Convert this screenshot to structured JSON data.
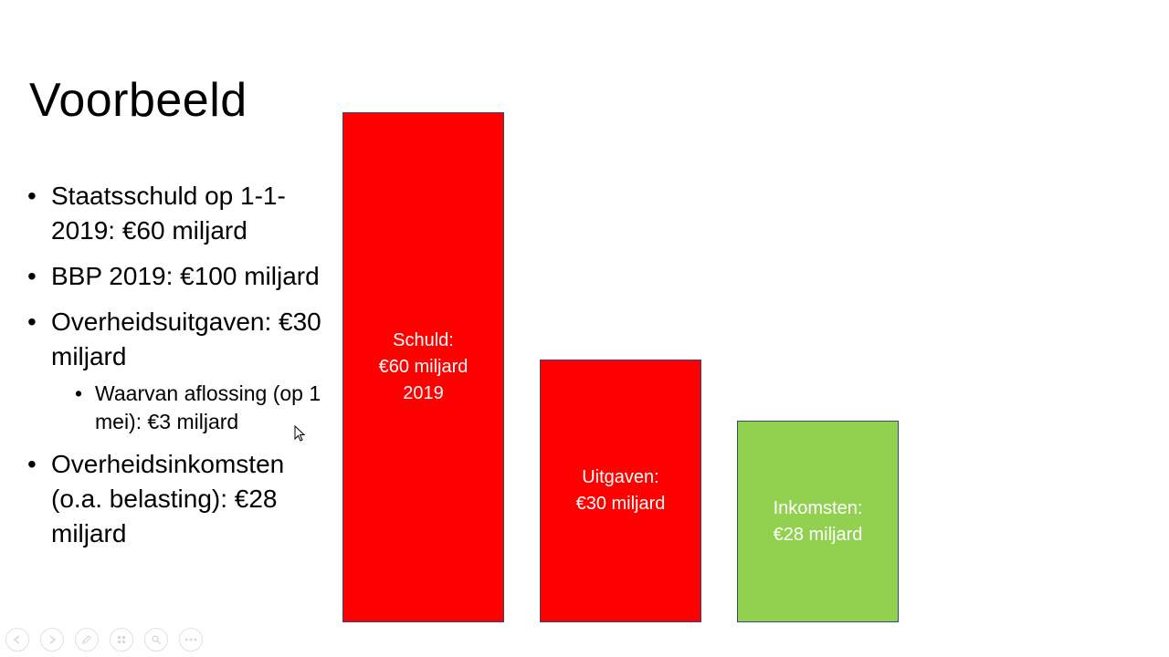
{
  "slide": {
    "title": "Voorbeeld",
    "bullets": [
      {
        "text": "Staatsschuld op 1-1-2019: €60 miljard"
      },
      {
        "text": "BBP 2019: €100 miljard"
      },
      {
        "text": "Overheidsuitgaven: €30 miljard",
        "sub": [
          {
            "text": "Waarvan aflossing (op 1 mei): €3 miljard"
          }
        ]
      },
      {
        "text": "Overheidsinkomsten (o.a. belasting): €28 miljard"
      }
    ]
  },
  "blocks": [
    {
      "label": "Schuld:\n€60 miljard\n2019",
      "value": 60,
      "color": "#ff0000"
    },
    {
      "label": "Uitgaven:\n€30 miljard",
      "value": 30,
      "color": "#ff0000"
    },
    {
      "label": "Inkomsten:\n€28 miljard",
      "value": 28,
      "color": "#92d050"
    }
  ],
  "toolbar": {
    "icons": [
      "prev-icon",
      "next-icon",
      "pen-icon",
      "slides-icon",
      "zoom-icon",
      "more-icon"
    ]
  }
}
